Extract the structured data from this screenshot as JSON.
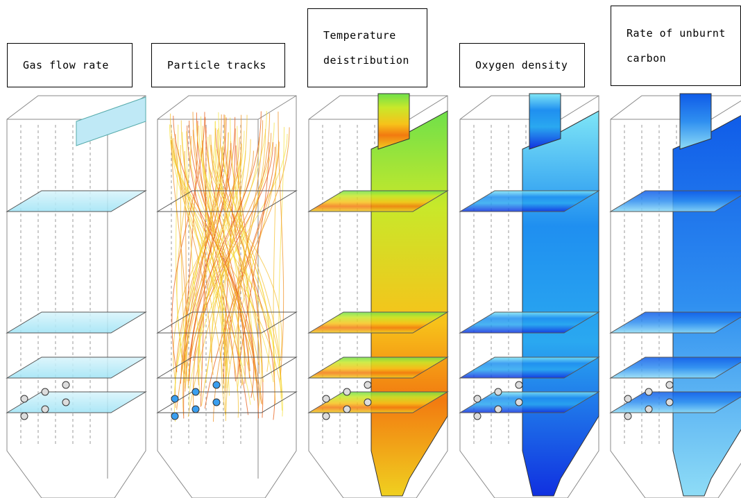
{
  "panels": [
    {
      "label": [
        "Gas flow rate"
      ]
    },
    {
      "label": [
        "Particle tracks"
      ]
    },
    {
      "label": [
        "Temperature",
        "deistribution"
      ]
    },
    {
      "label": [
        "Oxygen density"
      ]
    },
    {
      "label": [
        "Rate of unburnt",
        "carbon"
      ]
    }
  ]
}
